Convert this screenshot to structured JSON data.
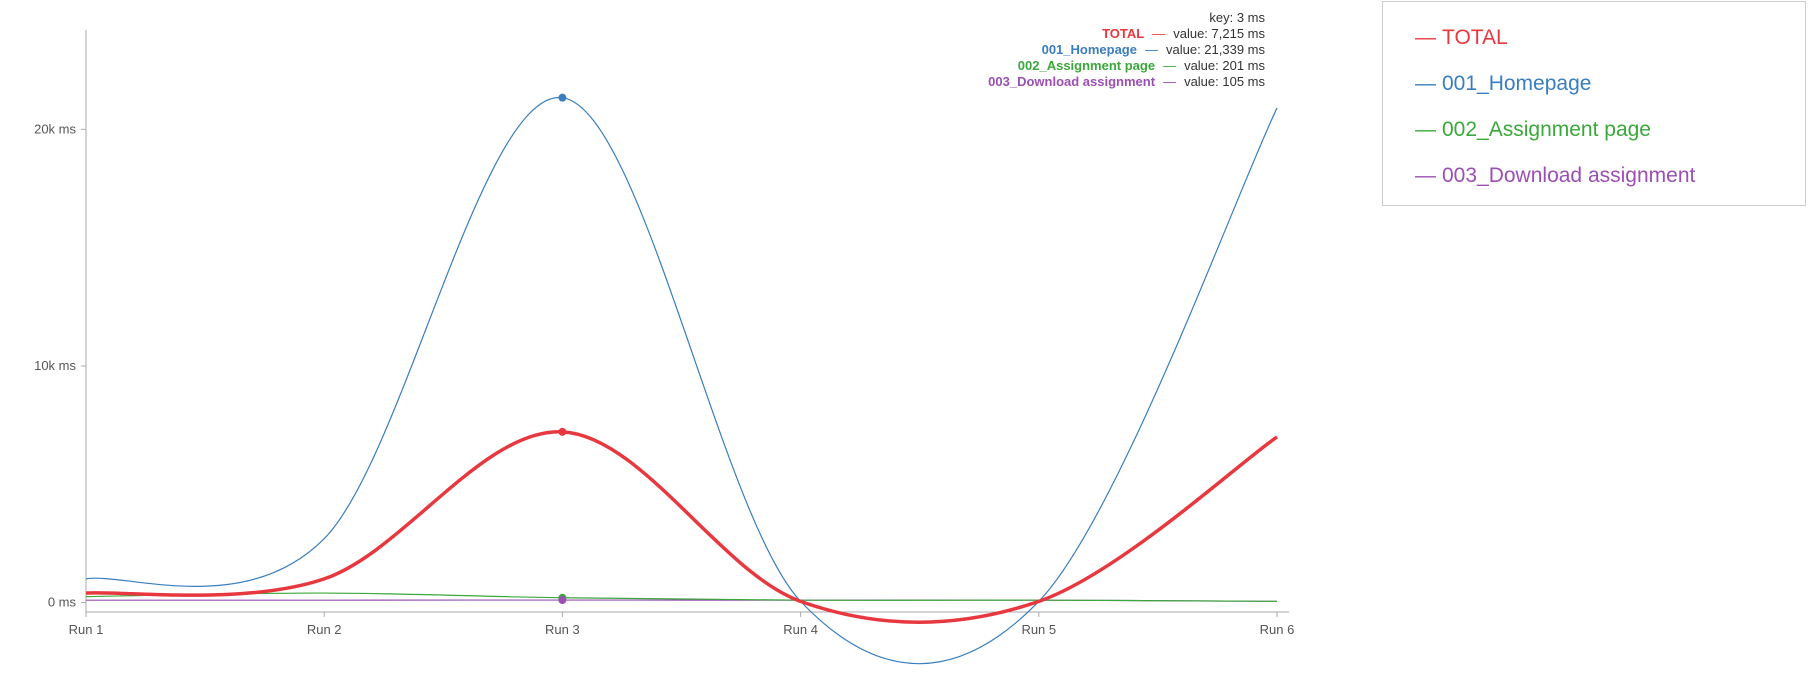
{
  "chart_data": {
    "type": "line",
    "categories": [
      "Run 1",
      "Run 2",
      "Run 3",
      "Run 4",
      "Run 5",
      "Run 6"
    ],
    "y_unit": "ms",
    "y_ticks": [
      {
        "value": 0,
        "label": "0 ms"
      },
      {
        "value": 10000,
        "label": "10k ms"
      },
      {
        "value": 20000,
        "label": "20k ms"
      }
    ],
    "ylim": [
      -400,
      24200
    ],
    "grid": false,
    "legend_position": "right",
    "series": [
      {
        "name": "TOTAL",
        "color": "#e8383f",
        "values": [
          400,
          1000,
          7215,
          50,
          50,
          7000
        ]
      },
      {
        "name": "001_Homepage",
        "color": "#3a7ebf",
        "values": [
          1000,
          2700,
          21339,
          50,
          50,
          20900
        ]
      },
      {
        "name": "002_Assignment page",
        "color": "#3aa83a",
        "values": [
          250,
          400,
          201,
          100,
          100,
          50
        ]
      },
      {
        "name": "003_Download assignment",
        "color": "#9b4fb3",
        "values": [
          100,
          100,
          105,
          100,
          100,
          50
        ]
      }
    ],
    "tooltip": {
      "key_label": "key: 3 ms",
      "index": 2,
      "rows": [
        {
          "name": "TOTAL",
          "value_label": "value: 7,215 ms"
        },
        {
          "name": "001_Homepage",
          "value_label": "value: 21,339 ms"
        },
        {
          "name": "002_Assignment page",
          "value_label": "value: 201 ms"
        },
        {
          "name": "003_Download assignment",
          "value_label": "value: 105 ms"
        }
      ]
    }
  }
}
